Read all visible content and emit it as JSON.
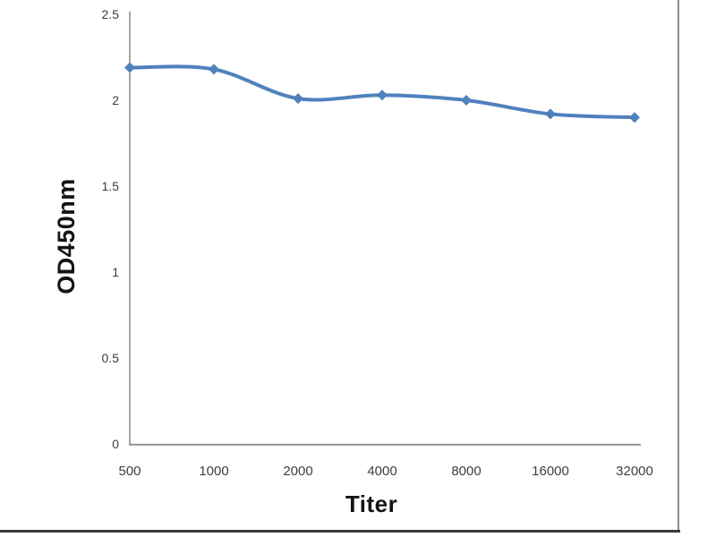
{
  "chart_data": {
    "type": "line",
    "title": "",
    "xlabel": "Titer",
    "ylabel": "OD450nm",
    "categories": [
      "500",
      "1000",
      "2000",
      "4000",
      "8000",
      "16000",
      "32000"
    ],
    "values": [
      2.19,
      2.18,
      2.01,
      2.03,
      2.0,
      1.92,
      1.9
    ],
    "ylim": [
      0,
      2.5
    ],
    "yticks": [
      0,
      0.5,
      1,
      1.5,
      2,
      2.5
    ],
    "ytick_labels": [
      "0",
      "0.5",
      "1",
      "1.5",
      "2",
      "2.5"
    ],
    "grid": false,
    "legend": false,
    "smoothed": true,
    "marker": "diamond",
    "line_color": "#4f81bd",
    "axis_color": "#8f8f8f",
    "tick_text_color": "#3d3d3d"
  }
}
